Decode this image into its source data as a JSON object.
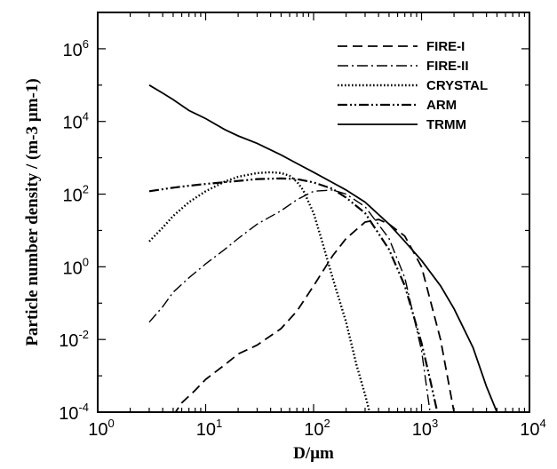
{
  "chart_data": {
    "type": "line",
    "xlabel": "D/µm",
    "ylabel": "Particle number density / (m-3 µm-1)",
    "xscale": "log",
    "yscale": "log",
    "xlim": [
      1,
      10000
    ],
    "ylim": [
      0.0001,
      10000000
    ],
    "x_ticks": [
      {
        "base": "10",
        "exp": "0",
        "value": 1
      },
      {
        "base": "10",
        "exp": "1",
        "value": 10
      },
      {
        "base": "10",
        "exp": "2",
        "value": 100
      },
      {
        "base": "10",
        "exp": "3",
        "value": 1000
      },
      {
        "base": "10",
        "exp": "4",
        "value": 10000
      }
    ],
    "y_ticks": [
      {
        "base": "10",
        "exp": "-4",
        "value": 0.0001
      },
      {
        "base": "10",
        "exp": "-2",
        "value": 0.01
      },
      {
        "base": "10",
        "exp": "0",
        "value": 1
      },
      {
        "base": "10",
        "exp": "2",
        "value": 100
      },
      {
        "base": "10",
        "exp": "4",
        "value": 10000
      },
      {
        "base": "10",
        "exp": "6",
        "value": 1000000
      }
    ],
    "legend_position": "top-right",
    "grid": false,
    "series": [
      {
        "name": "FIRE-I",
        "dash": "dashed",
        "x": [
          5,
          6,
          8,
          10,
          15,
          20,
          30,
          50,
          70,
          100,
          150,
          200,
          300,
          400,
          500,
          700,
          1000,
          1500,
          2000
        ],
        "y": [
          8e-05,
          0.00018,
          0.0004,
          0.0008,
          0.002,
          0.004,
          0.007,
          0.02,
          0.06,
          0.3,
          2,
          6,
          17,
          20,
          15,
          7,
          1,
          0.01,
          0.0001
        ]
      },
      {
        "name": "FIRE-II",
        "dash": "dash-dot",
        "x": [
          3,
          4,
          5,
          7,
          10,
          15,
          20,
          30,
          50,
          70,
          100,
          150,
          200,
          300,
          500,
          700,
          1000,
          1200
        ],
        "y": [
          0.03,
          0.08,
          0.2,
          0.5,
          1.2,
          3,
          6,
          15,
          35,
          70,
          120,
          130,
          100,
          45,
          6,
          0.5,
          0.005,
          0.0001
        ]
      },
      {
        "name": "CRYSTAL",
        "dash": "dotted",
        "x": [
          3,
          4,
          5,
          7,
          10,
          15,
          20,
          30,
          40,
          50,
          60,
          70,
          80,
          100,
          120,
          150,
          200,
          250,
          300,
          330
        ],
        "y": [
          5,
          12,
          25,
          60,
          120,
          220,
          300,
          380,
          400,
          380,
          320,
          220,
          130,
          30,
          5,
          0.5,
          0.03,
          0.002,
          0.0003,
          0.0001
        ]
      },
      {
        "name": "ARM",
        "dash": "dash-dot-dot",
        "x": [
          3,
          5,
          7,
          10,
          20,
          30,
          50,
          70,
          100,
          150,
          200,
          300,
          500,
          700,
          1000,
          1200,
          1400
        ],
        "y": [
          120,
          150,
          170,
          190,
          230,
          260,
          270,
          260,
          210,
          140,
          80,
          30,
          3,
          0.3,
          0.008,
          0.0008,
          0.0001
        ]
      },
      {
        "name": "TRMM",
        "dash": "solid",
        "x": [
          3,
          4,
          5,
          7,
          10,
          15,
          20,
          30,
          50,
          70,
          100,
          200,
          300,
          500,
          700,
          1000,
          1500,
          2000,
          3000,
          4000,
          5000
        ],
        "y": [
          100000,
          60000,
          40000,
          20000,
          12000,
          6000,
          4000,
          2500,
          1200,
          700,
          400,
          130,
          60,
          15,
          5,
          1.5,
          0.3,
          0.07,
          0.006,
          0.0005,
          0.0001
        ]
      }
    ]
  }
}
